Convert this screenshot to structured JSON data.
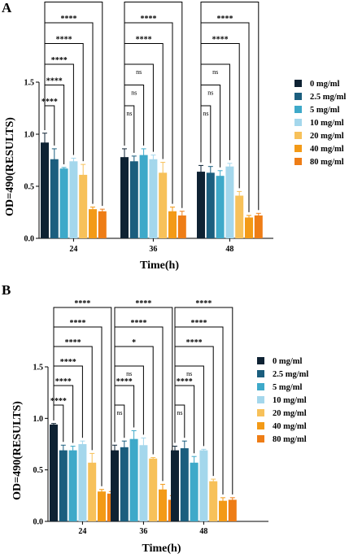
{
  "colors": {
    "series": [
      "#0e2233",
      "#1b5e7e",
      "#3ea9c9",
      "#a4d7ec",
      "#f7c15a",
      "#f39a17",
      "#ee7d16"
    ],
    "axis": "#000000",
    "bracket": "#000000"
  },
  "chart_data": [
    {
      "type": "bar",
      "panel": "A",
      "categories": [
        "24",
        "36",
        "48"
      ],
      "xlabel": "Time(h)",
      "ylabel": "OD=490(RESULTS)",
      "ylim": [
        0,
        1.5
      ],
      "yticks": [
        "0.0",
        "0.5",
        "1.0",
        "1.5"
      ],
      "legend_position": "right",
      "series": [
        {
          "name": "0 mg/ml",
          "values": [
            0.92,
            0.78,
            0.64
          ],
          "errors": [
            0.09,
            0.08,
            0.06
          ]
        },
        {
          "name": "2.5 mg/ml",
          "values": [
            0.76,
            0.74,
            0.63
          ],
          "errors": [
            0.1,
            0.05,
            0.06
          ]
        },
        {
          "name": "5 mg/ml",
          "values": [
            0.67,
            0.8,
            0.6
          ],
          "errors": [
            0.01,
            0.06,
            0.05
          ]
        },
        {
          "name": "10 mg/ml",
          "values": [
            0.74,
            0.76,
            0.69
          ],
          "errors": [
            0.03,
            0.04,
            0.03
          ]
        },
        {
          "name": "20 mg/ml",
          "values": [
            0.61,
            0.63,
            0.41
          ],
          "errors": [
            0.1,
            0.1,
            0.04
          ]
        },
        {
          "name": "40 mg/ml",
          "values": [
            0.28,
            0.26,
            0.2
          ],
          "errors": [
            0.02,
            0.04,
            0.02
          ]
        },
        {
          "name": "80 mg/ml",
          "values": [
            0.26,
            0.22,
            0.22
          ],
          "errors": [
            0.02,
            0.04,
            0.02
          ]
        }
      ],
      "significance": [
        [
          "****",
          "****",
          "****",
          "****",
          "****",
          "****"
        ],
        [
          "ns",
          "ns",
          "ns",
          "****",
          "****",
          "****"
        ],
        [
          "ns",
          "ns",
          "ns",
          "****",
          "****",
          "****"
        ]
      ]
    },
    {
      "type": "bar",
      "panel": "B",
      "categories": [
        "24",
        "36",
        "48"
      ],
      "xlabel": "Time(h)",
      "ylabel": "OD=490(RESULTS)",
      "ylim": [
        0,
        1.5
      ],
      "yticks": [
        "0.0",
        "0.5",
        "1.0",
        "1.5"
      ],
      "legend_position": "right",
      "series": [
        {
          "name": "0 mg/ml",
          "values": [
            0.94,
            0.69,
            0.69
          ],
          "errors": [
            0.01,
            0.05,
            0.04
          ]
        },
        {
          "name": "2.5 mg/ml",
          "values": [
            0.69,
            0.72,
            0.71
          ],
          "errors": [
            0.05,
            0.06,
            0.07
          ]
        },
        {
          "name": "5 mg/ml",
          "values": [
            0.69,
            0.8,
            0.57
          ],
          "errors": [
            0.04,
            0.08,
            0.06
          ]
        },
        {
          "name": "10 mg/ml",
          "values": [
            0.75,
            0.74,
            0.69
          ],
          "errors": [
            0.03,
            0.07,
            0.01
          ]
        },
        {
          "name": "20 mg/ml",
          "values": [
            0.57,
            0.61,
            0.39
          ],
          "errors": [
            0.09,
            0.01,
            0.02
          ]
        },
        {
          "name": "40 mg/ml",
          "values": [
            0.29,
            0.31,
            0.2
          ],
          "errors": [
            0.02,
            0.05,
            0.03
          ]
        },
        {
          "name": "80 mg/ml",
          "values": [
            0.27,
            0.21,
            0.21
          ],
          "errors": [
            0.02,
            0.04,
            0.02
          ]
        }
      ],
      "significance": [
        [
          "****",
          "****",
          "****",
          "****",
          "****",
          "****"
        ],
        [
          "ns",
          "****",
          "ns",
          "*",
          "****",
          "****"
        ],
        [
          "ns",
          "****",
          "ns",
          "****",
          "****",
          "****"
        ]
      ]
    }
  ]
}
